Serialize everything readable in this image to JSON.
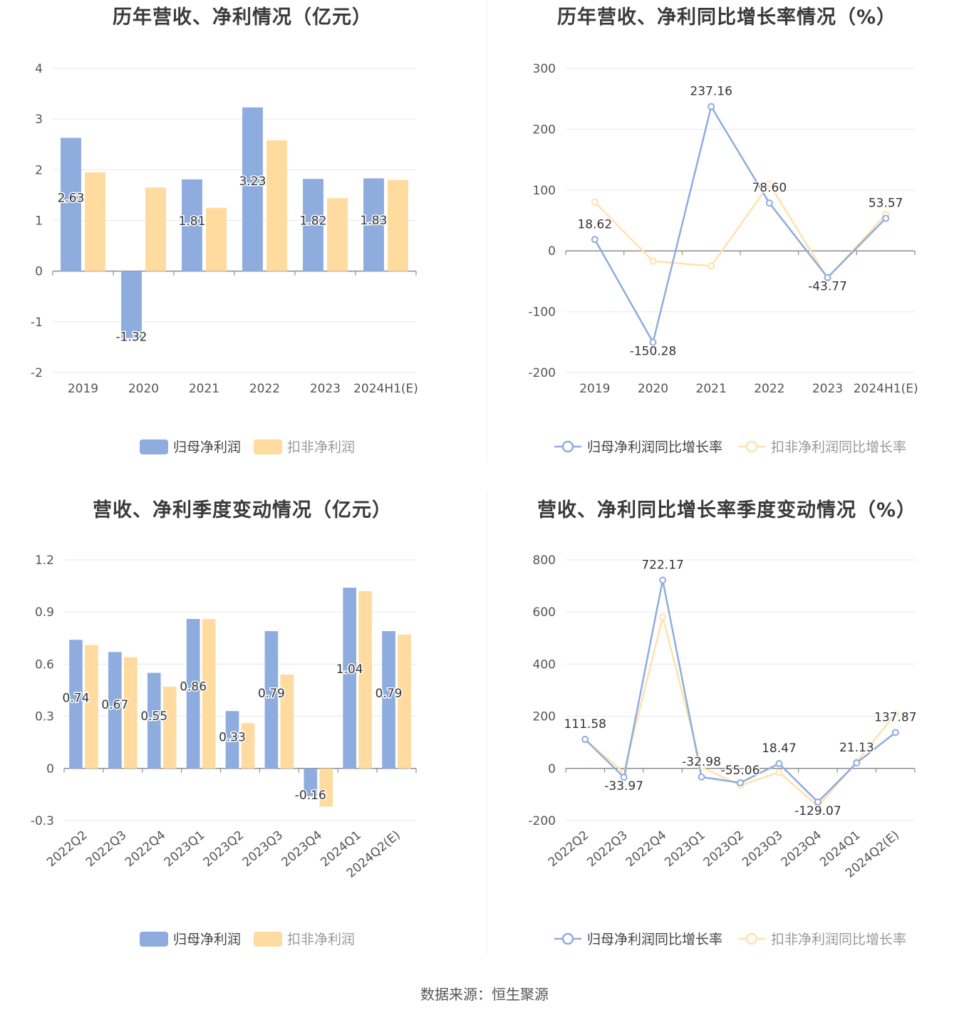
{
  "colors": {
    "net_profit": "#8eadde",
    "deducted_profit": "#ffdba0",
    "net_line": "#8eadde",
    "deducted_line": "#ffe2ad",
    "axis": "#8e8e8e",
    "grid": "#e8e8ee",
    "text": "#555555"
  },
  "source": "数据来源：恒生聚源",
  "chart_data": [
    {
      "type": "bar",
      "title": "历年营收、净利情况（亿元）",
      "categories": [
        "2019",
        "2020",
        "2021",
        "2022",
        "2023",
        "2024H1(E)"
      ],
      "ylim": [
        -2,
        4
      ],
      "yticks": [
        4,
        3,
        2,
        1,
        0,
        -1,
        -2
      ],
      "series": [
        {
          "name": "归母净利润",
          "values": [
            2.63,
            -1.32,
            1.81,
            3.23,
            1.82,
            1.83
          ],
          "labels": [
            "2.63",
            "-1.32",
            "1.81",
            "3.23",
            "1.82",
            "1.83"
          ]
        },
        {
          "name": "扣非净利润",
          "values": [
            1.95,
            1.65,
            1.25,
            2.58,
            1.44,
            1.8
          ]
        }
      ],
      "legend": "bottom-center"
    },
    {
      "type": "line",
      "title": "历年营收、净利同比增长率情况（%）",
      "categories": [
        "2019",
        "2020",
        "2021",
        "2022",
        "2023",
        "2024H1(E)"
      ],
      "ylim": [
        -200,
        300
      ],
      "yticks": [
        300,
        200,
        100,
        0,
        -100,
        -200
      ],
      "series": [
        {
          "name": "归母净利润同比增长率",
          "values": [
            18.62,
            -150.28,
            237.16,
            78.6,
            -43.77,
            53.57
          ],
          "labels": [
            "18.62",
            "-150.28",
            "237.16",
            "78.60",
            "-43.77",
            "53.57"
          ]
        },
        {
          "name": "扣非净利润同比增长率",
          "values": [
            80,
            -17,
            -25,
            110,
            -45,
            60
          ]
        }
      ],
      "legend": "bottom-center"
    },
    {
      "type": "bar",
      "title": "营收、净利季度变动情况（亿元）",
      "categories": [
        "2022Q2",
        "2022Q3",
        "2022Q4",
        "2023Q1",
        "2023Q2",
        "2023Q3",
        "2023Q4",
        "2024Q1",
        "2024Q2(E)"
      ],
      "ylim": [
        -0.3,
        1.2
      ],
      "yticks": [
        "1.2",
        "0.9",
        "0.6",
        "0.3",
        "0",
        "-0.3"
      ],
      "series": [
        {
          "name": "归母净利润",
          "values": [
            0.74,
            0.67,
            0.55,
            0.86,
            0.33,
            0.79,
            -0.16,
            1.04,
            0.79
          ],
          "labels": [
            "0.74",
            "0.67",
            "0.55",
            "0.86",
            "0.33",
            "0.79",
            "-0.16",
            "1.04",
            "0.79"
          ]
        },
        {
          "name": "扣非净利润",
          "values": [
            0.71,
            0.64,
            0.47,
            0.86,
            0.26,
            0.54,
            -0.22,
            1.02,
            0.77
          ]
        }
      ],
      "legend": "bottom-center"
    },
    {
      "type": "line",
      "title": "营收、净利同比增长率季度变动情况（%）",
      "categories": [
        "2022Q2",
        "2022Q3",
        "2022Q4",
        "2023Q1",
        "2023Q2",
        "2023Q3",
        "2023Q4",
        "2024Q1",
        "2024Q2(E)"
      ],
      "ylim": [
        -200,
        800
      ],
      "yticks": [
        800,
        600,
        400,
        200,
        0,
        -200
      ],
      "series": [
        {
          "name": "归母净利润同比增长率",
          "values": [
            111.58,
            -33.97,
            722.17,
            -32.98,
            -55.06,
            18.47,
            -129.07,
            21.13,
            137.87
          ],
          "labels": [
            "111.58",
            "-33.97",
            "722.17",
            "-32.98",
            "-55.06",
            "18.47",
            "-129.07",
            "21.13",
            "137.87"
          ]
        },
        {
          "name": "扣非净利润同比增长率",
          "values": [
            110,
            -15,
            580,
            5,
            -65,
            -15,
            -145,
            25,
            210
          ]
        }
      ],
      "legend": "bottom-center"
    }
  ]
}
